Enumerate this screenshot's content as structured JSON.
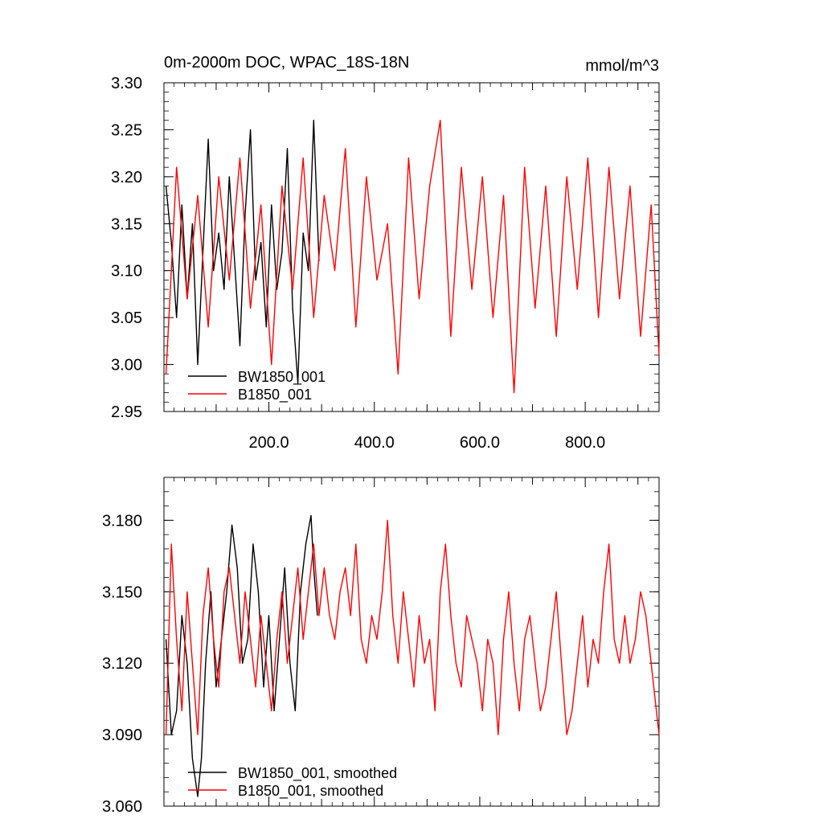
{
  "chart_data": [
    {
      "type": "line",
      "title": "0m-2000m DOC, WPAC_18S-18N",
      "units": "mmol/m^3",
      "xlabel": "",
      "ylabel": "",
      "xlim": [
        1,
        940
      ],
      "ylim": [
        2.95,
        3.3
      ],
      "x_ticks": [
        200.0,
        400.0,
        600.0,
        800.0
      ],
      "x_tick_labels": [
        "200.0",
        "400.0",
        "600.0",
        "800.0"
      ],
      "y_ticks": [
        2.95,
        3.0,
        3.05,
        3.1,
        3.15,
        3.2,
        3.25,
        3.3
      ],
      "y_tick_labels": [
        "2.95",
        "3.00",
        "3.05",
        "3.10",
        "3.15",
        "3.20",
        "3.25",
        "3.30"
      ],
      "legend_position": "bottom-left",
      "series": [
        {
          "name": "BW1850_001",
          "color": "#000000",
          "x": [
            5,
            15,
            25,
            35,
            45,
            55,
            65,
            75,
            85,
            95,
            105,
            115,
            125,
            135,
            145,
            155,
            165,
            175,
            185,
            195,
            205,
            215,
            225,
            235,
            245,
            255,
            265,
            275,
            285,
            295
          ],
          "values": [
            3.19,
            3.13,
            3.05,
            3.17,
            3.07,
            3.15,
            3.0,
            3.12,
            3.24,
            3.1,
            3.14,
            3.08,
            3.2,
            3.11,
            3.02,
            3.16,
            3.25,
            3.09,
            3.13,
            3.04,
            3.17,
            3.08,
            3.12,
            3.23,
            3.06,
            2.98,
            3.14,
            3.1,
            3.26,
            3.11
          ]
        },
        {
          "name": "B1850_001",
          "color": "#ff0000",
          "x": [
            5,
            25,
            45,
            65,
            85,
            105,
            125,
            145,
            165,
            185,
            205,
            225,
            245,
            265,
            285,
            305,
            325,
            345,
            365,
            385,
            405,
            425,
            445,
            465,
            485,
            505,
            525,
            545,
            565,
            585,
            605,
            625,
            645,
            665,
            685,
            705,
            725,
            745,
            765,
            785,
            805,
            825,
            845,
            865,
            885,
            905,
            925,
            940
          ],
          "values": [
            2.99,
            3.21,
            3.07,
            3.18,
            3.04,
            3.2,
            3.09,
            3.22,
            3.06,
            3.17,
            3.0,
            3.19,
            3.08,
            3.22,
            3.05,
            3.18,
            3.1,
            3.23,
            3.04,
            3.2,
            3.09,
            3.15,
            2.99,
            3.22,
            3.07,
            3.19,
            3.26,
            3.03,
            3.21,
            3.08,
            3.2,
            3.05,
            3.18,
            2.97,
            3.21,
            3.06,
            3.19,
            3.03,
            3.2,
            3.08,
            3.22,
            3.05,
            3.21,
            3.07,
            3.19,
            3.03,
            3.17,
            3.01
          ]
        }
      ]
    },
    {
      "type": "line",
      "title": "",
      "xlabel": "",
      "ylabel": "",
      "xlim": [
        1,
        940
      ],
      "ylim": [
        3.06,
        3.198
      ],
      "y_ticks": [
        3.06,
        3.09,
        3.12,
        3.15,
        3.18
      ],
      "y_tick_labels": [
        "3.060",
        "3.090",
        "3.120",
        "3.150",
        "3.180"
      ],
      "legend_position": "bottom-left",
      "series": [
        {
          "name": "BW1850_001, smoothed",
          "color": "#000000",
          "x": [
            5,
            15,
            25,
            35,
            45,
            55,
            65,
            72,
            80,
            90,
            100,
            110,
            120,
            130,
            140,
            150,
            160,
            170,
            180,
            190,
            200,
            210,
            220,
            230,
            240,
            250,
            260,
            270,
            280,
            285,
            292
          ],
          "values": [
            3.13,
            3.09,
            3.1,
            3.14,
            3.12,
            3.08,
            3.064,
            3.08,
            3.12,
            3.15,
            3.11,
            3.13,
            3.15,
            3.178,
            3.16,
            3.12,
            3.13,
            3.17,
            3.15,
            3.11,
            3.14,
            3.1,
            3.13,
            3.16,
            3.12,
            3.1,
            3.15,
            3.17,
            3.182,
            3.16,
            3.14
          ]
        },
        {
          "name": "B1850_001, smoothed",
          "color": "#ff0000",
          "x": [
            5,
            15,
            25,
            35,
            45,
            55,
            65,
            75,
            85,
            95,
            105,
            115,
            125,
            135,
            145,
            155,
            165,
            175,
            185,
            195,
            205,
            215,
            225,
            235,
            245,
            255,
            265,
            275,
            285,
            295,
            305,
            315,
            325,
            335,
            345,
            355,
            365,
            375,
            385,
            395,
            405,
            415,
            425,
            435,
            445,
            455,
            465,
            475,
            485,
            495,
            505,
            515,
            525,
            535,
            545,
            555,
            565,
            575,
            585,
            595,
            605,
            615,
            625,
            635,
            645,
            655,
            665,
            675,
            685,
            695,
            705,
            715,
            725,
            735,
            745,
            755,
            765,
            775,
            785,
            795,
            805,
            815,
            825,
            835,
            845,
            855,
            865,
            875,
            885,
            895,
            905,
            915,
            925,
            935,
            940
          ],
          "values": [
            3.09,
            3.17,
            3.13,
            3.1,
            3.15,
            3.12,
            3.09,
            3.14,
            3.16,
            3.13,
            3.11,
            3.15,
            3.16,
            3.14,
            3.12,
            3.15,
            3.13,
            3.11,
            3.14,
            3.12,
            3.1,
            3.13,
            3.15,
            3.12,
            3.14,
            3.16,
            3.13,
            3.15,
            3.17,
            3.14,
            3.16,
            3.14,
            3.13,
            3.15,
            3.16,
            3.14,
            3.17,
            3.13,
            3.12,
            3.14,
            3.13,
            3.15,
            3.18,
            3.14,
            3.12,
            3.15,
            3.13,
            3.11,
            3.14,
            3.12,
            3.13,
            3.1,
            3.15,
            3.17,
            3.14,
            3.12,
            3.11,
            3.14,
            3.13,
            3.12,
            3.1,
            3.13,
            3.12,
            3.09,
            3.13,
            3.15,
            3.12,
            3.1,
            3.13,
            3.14,
            3.12,
            3.1,
            3.11,
            3.13,
            3.15,
            3.12,
            3.09,
            3.1,
            3.12,
            3.14,
            3.11,
            3.13,
            3.12,
            3.15,
            3.17,
            3.13,
            3.12,
            3.14,
            3.12,
            3.13,
            3.15,
            3.14,
            3.12,
            3.1,
            3.09
          ]
        }
      ]
    }
  ]
}
